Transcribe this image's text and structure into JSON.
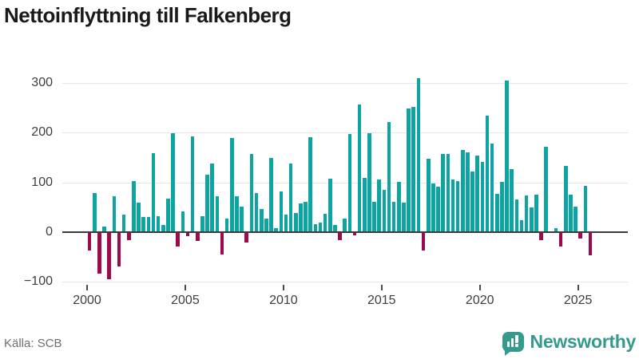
{
  "title": "Nettoinflyttning till Falkenberg",
  "source": "Källa: SCB",
  "brand": {
    "name": "Newsworthy",
    "color": "#35998C"
  },
  "chart_data": {
    "type": "bar",
    "title": "Nettoinflyttning till Falkenberg",
    "frequency": "quarterly",
    "x_start": "2000 Q1",
    "x_end": "2025 Q3",
    "x_tick_labels": [
      "2000",
      "2005",
      "2010",
      "2015",
      "2020",
      "2025"
    ],
    "y_ticks": [
      300,
      200,
      100,
      0,
      -100
    ],
    "y_tick_labels": [
      "300",
      "200",
      "100",
      "0",
      "−100"
    ],
    "ylim": [
      -110,
      330
    ],
    "grid": true,
    "legend": "none",
    "colors": {
      "positive": "#0CA5A1",
      "negative": "#9E0B4D"
    },
    "values": [
      -36,
      76,
      -82,
      9,
      -93,
      71,
      -68,
      33,
      -15,
      101,
      57,
      29,
      29,
      157,
      31,
      13,
      66,
      197,
      -28,
      40,
      -7,
      191,
      -17,
      31,
      114,
      136,
      71,
      -44,
      26,
      188,
      71,
      50,
      -19,
      156,
      76,
      45,
      26,
      148,
      6,
      80,
      33,
      136,
      36,
      56,
      59,
      190,
      14,
      17,
      35,
      105,
      13,
      -15,
      25,
      196,
      -5,
      255,
      107,
      198,
      59,
      104,
      83,
      220,
      59,
      100,
      58,
      247,
      251,
      308,
      -35,
      146,
      96,
      89,
      155,
      155,
      104,
      101,
      163,
      158,
      120,
      152,
      139,
      232,
      177,
      75,
      99,
      303,
      125,
      64,
      22,
      72,
      48,
      73,
      -15,
      170,
      0,
      6,
      -27,
      132,
      73,
      49,
      -11,
      91,
      -46
    ]
  }
}
